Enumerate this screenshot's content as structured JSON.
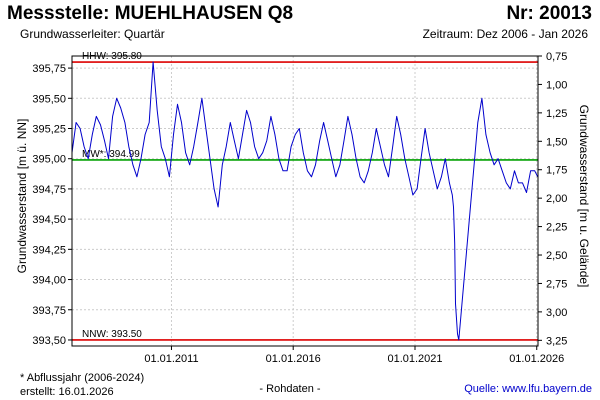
{
  "header": {
    "title": "Messstelle: MUEHLHAUSEN Q8",
    "number": "Nr: 20013",
    "aquifer": "Grundwasserleiter: Quartär",
    "period": "Zeitraum: Dez 2006 - Jan 2026"
  },
  "footer": {
    "footnote": "* Abflussjahr (2006-2024)",
    "created": "erstellt:  16.01.2026",
    "rawdata": "- Rohdaten -",
    "source": "Quelle:  www.lfu.bayern.de"
  },
  "colors": {
    "series": "#0000cc",
    "hhw_nnw": "#dd0000",
    "mw": "#00a000",
    "grid": "#cccccc"
  },
  "chart_data": {
    "type": "line",
    "ylabel": "Grundwasserstand [m ü. NN]",
    "y2label": "Grundwasserstand [m u. Gelände]",
    "ylim": [
      393.45,
      395.85
    ],
    "y2lim": [
      3.3,
      0.75
    ],
    "xlim": [
      "2006-12-01",
      "2026-01-20"
    ],
    "grid": true,
    "yticks": [
      "393,50",
      "393,75",
      "394,00",
      "394,25",
      "394,50",
      "394,75",
      "395,00",
      "395,25",
      "395,50",
      "395,75"
    ],
    "y2ticks": [
      "3,25",
      "3,00",
      "2,75",
      "2,50",
      "2,25",
      "2,00",
      "1,75",
      "1,50",
      "1,25",
      "1,00",
      "0,75"
    ],
    "xticks": [
      "01.01.2011",
      "01.01.2016",
      "01.01.2021",
      "01.01.2026"
    ],
    "reference_lines": [
      {
        "label": "HHW: 395.80",
        "value": 395.8,
        "kind": "hhw"
      },
      {
        "label": "MW*: 394.99",
        "value": 394.99,
        "kind": "mw"
      },
      {
        "label": "NNW: 393.50",
        "value": 393.5,
        "kind": "nnw"
      }
    ],
    "series": [
      {
        "x": [
          "2006-12-01",
          "2007-02-01",
          "2007-04-01",
          "2007-06-01",
          "2007-08-01",
          "2007-10-01",
          "2007-12-01",
          "2008-02-01",
          "2008-04-01",
          "2008-06-01",
          "2008-08-01",
          "2008-10-01",
          "2008-12-01",
          "2009-02-01",
          "2009-04-01",
          "2009-06-01",
          "2009-08-01",
          "2009-10-01",
          "2009-12-01",
          "2010-02-01",
          "2010-04-01",
          "2010-06-01",
          "2010-08-01",
          "2010-10-01",
          "2010-12-01",
          "2011-02-01",
          "2011-04-01",
          "2011-06-01",
          "2011-08-01",
          "2011-10-01",
          "2011-12-01",
          "2012-02-01",
          "2012-04-01",
          "2012-06-01",
          "2012-08-01",
          "2012-10-01",
          "2012-12-01",
          "2013-02-01",
          "2013-04-01",
          "2013-06-01",
          "2013-08-01",
          "2013-10-01",
          "2013-12-01",
          "2014-02-01",
          "2014-04-01",
          "2014-06-01",
          "2014-08-01",
          "2014-10-01",
          "2014-12-01",
          "2015-02-01",
          "2015-04-01",
          "2015-06-01",
          "2015-08-01",
          "2015-10-01",
          "2015-12-01",
          "2016-02-01",
          "2016-04-01",
          "2016-06-01",
          "2016-08-01",
          "2016-10-01",
          "2016-12-01",
          "2017-02-01",
          "2017-04-01",
          "2017-06-01",
          "2017-08-01",
          "2017-10-01",
          "2017-12-01",
          "2018-02-01",
          "2018-04-01",
          "2018-06-01",
          "2018-08-01",
          "2018-10-01",
          "2018-12-01",
          "2019-02-01",
          "2019-04-01",
          "2019-06-01",
          "2019-08-01",
          "2019-10-01",
          "2019-12-01",
          "2020-02-01",
          "2020-04-01",
          "2020-06-01",
          "2020-08-01",
          "2020-10-01",
          "2020-12-01",
          "2021-02-01",
          "2021-04-01",
          "2021-06-01",
          "2021-08-01",
          "2021-10-01",
          "2021-12-01",
          "2022-02-01",
          "2022-04-01",
          "2022-06-01",
          "2022-07-15",
          "2022-08-01",
          "2022-08-20",
          "2022-09-01",
          "2022-10-01",
          "2022-10-20",
          "2023-08-01",
          "2023-10-01",
          "2023-12-01",
          "2024-02-01",
          "2024-04-01",
          "2024-06-01",
          "2024-08-01",
          "2024-10-01",
          "2024-12-01",
          "2025-02-01",
          "2025-04-01",
          "2025-06-01",
          "2025-08-01",
          "2025-10-01",
          "2025-12-01",
          "2026-01-15"
        ],
        "y": [
          395.05,
          395.3,
          395.25,
          395.1,
          395.0,
          395.2,
          395.35,
          395.28,
          395.15,
          395.0,
          395.35,
          395.5,
          395.42,
          395.3,
          395.1,
          394.95,
          394.85,
          395.0,
          395.2,
          395.3,
          395.8,
          395.4,
          395.1,
          395.0,
          394.85,
          395.2,
          395.45,
          395.3,
          395.05,
          394.95,
          395.1,
          395.3,
          395.5,
          395.25,
          395.0,
          394.75,
          394.6,
          394.95,
          395.1,
          395.3,
          395.15,
          395.0,
          395.2,
          395.4,
          395.3,
          395.1,
          395.0,
          395.05,
          395.15,
          395.35,
          395.2,
          395.0,
          394.9,
          394.9,
          395.1,
          395.2,
          395.25,
          395.05,
          394.9,
          394.85,
          394.95,
          395.15,
          395.3,
          395.15,
          395.0,
          394.85,
          394.95,
          395.15,
          395.35,
          395.2,
          395.0,
          394.85,
          394.8,
          394.9,
          395.05,
          395.25,
          395.1,
          394.95,
          394.85,
          395.1,
          395.35,
          395.2,
          395.0,
          394.85,
          394.7,
          394.75,
          395.0,
          395.25,
          395.05,
          394.9,
          394.75,
          394.85,
          395.0,
          394.8,
          394.7,
          394.6,
          394.3,
          393.8,
          393.55,
          393.5,
          395.3,
          395.5,
          395.2,
          395.05,
          394.95,
          395.0,
          394.9,
          394.8,
          394.75,
          394.9,
          394.8,
          394.8,
          394.72,
          394.9,
          394.9,
          394.85
        ]
      }
    ]
  }
}
